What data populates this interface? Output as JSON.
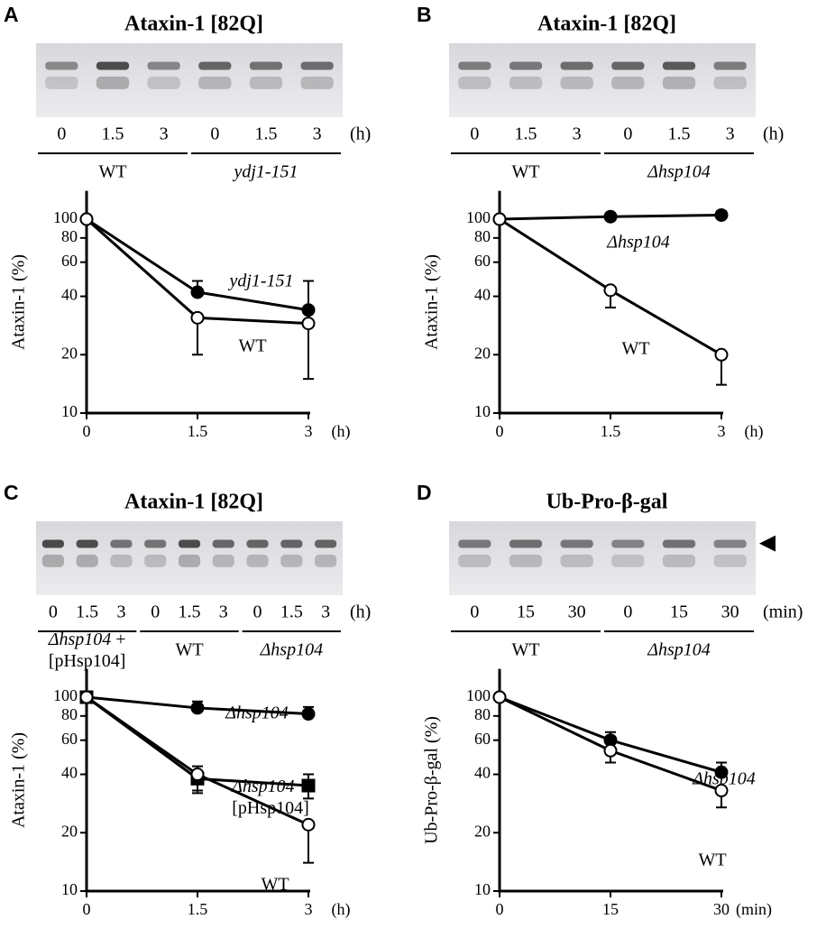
{
  "chart_data": [
    {
      "type": "line",
      "panel": "A",
      "title": "Ataxin-1 [82Q]",
      "lanes": [
        "0",
        "1.5",
        "3",
        "0",
        "1.5",
        "3"
      ],
      "unit": "(h)",
      "groups": [
        "WT",
        "ydj1-151"
      ],
      "ylabel": "Ataxin-1 (%)",
      "log_y": true,
      "x": [
        0,
        1.5,
        3
      ],
      "xlim": [
        0,
        3
      ],
      "xticks": [
        0,
        1.5,
        3
      ],
      "ylim": [
        10,
        140
      ],
      "yticks": [
        10,
        20,
        40,
        60,
        80,
        100
      ],
      "series": [
        {
          "name": "ydj1-151",
          "color": "#000000",
          "marker": "circle",
          "marker_fill": "#000000",
          "error_side": "up",
          "values": [
            100,
            42,
            34
          ],
          "errors": [
            0,
            6,
            14
          ]
        },
        {
          "name": "WT",
          "color": "#000000",
          "marker": "circle",
          "marker_fill": "#ffffff",
          "error_side": "down",
          "values": [
            100,
            31,
            29
          ],
          "errors": [
            0,
            11,
            14
          ]
        }
      ]
    },
    {
      "type": "line",
      "panel": "B",
      "title": "Ataxin-1 [82Q]",
      "lanes": [
        "0",
        "1.5",
        "3",
        "0",
        "1.5",
        "3"
      ],
      "unit": "(h)",
      "groups": [
        "WT",
        "Δhsp104"
      ],
      "ylabel": "Ataxin-1 (%)",
      "log_y": true,
      "x": [
        0,
        1.5,
        3
      ],
      "xlim": [
        0,
        3
      ],
      "xticks": [
        0,
        1.5,
        3
      ],
      "ylim": [
        10,
        140
      ],
      "yticks": [
        10,
        20,
        40,
        60,
        80,
        100
      ],
      "series": [
        {
          "name": "Δhsp104",
          "color": "#000000",
          "marker": "circle",
          "marker_fill": "#000000",
          "error_side": "up",
          "values": [
            100,
            103,
            105
          ],
          "errors": [
            0,
            4,
            5
          ]
        },
        {
          "name": "WT",
          "color": "#000000",
          "marker": "circle",
          "marker_fill": "#ffffff",
          "error_side": "down",
          "values": [
            100,
            43,
            20
          ],
          "errors": [
            0,
            8,
            6
          ]
        }
      ]
    },
    {
      "type": "line",
      "panel": "C",
      "title": "Ataxin-1 [82Q]",
      "lanes": [
        "0",
        "1.5",
        "3",
        "0",
        "1.5",
        "3",
        "0",
        "1.5",
        "3"
      ],
      "unit": "(h)",
      "groups": [
        "Δhsp104 + [pHsp104]",
        "WT",
        "Δhsp104"
      ],
      "ylabel": "Ataxin-1 (%)",
      "log_y": true,
      "x": [
        0,
        1.5,
        3
      ],
      "xlim": [
        0,
        3
      ],
      "xticks": [
        0,
        1.5,
        3
      ],
      "ylim": [
        10,
        140
      ],
      "yticks": [
        10,
        20,
        40,
        60,
        80,
        100
      ],
      "series": [
        {
          "name": "Δhsp104",
          "color": "#000000",
          "marker": "circle",
          "marker_fill": "#000000",
          "error_side": "up",
          "values": [
            100,
            88,
            82
          ],
          "errors": [
            0,
            7,
            7
          ]
        },
        {
          "name": "Δhsp104 + [pHsp104]",
          "color": "#000000",
          "marker": "square",
          "marker_fill": "#000000",
          "error_side": "both",
          "values": [
            100,
            38,
            35
          ],
          "errors": [
            0,
            6,
            5
          ]
        },
        {
          "name": "WT",
          "color": "#000000",
          "marker": "circle",
          "marker_fill": "#ffffff",
          "error_side": "down",
          "values": [
            100,
            40,
            22
          ],
          "errors": [
            0,
            7,
            8
          ]
        }
      ]
    },
    {
      "type": "line",
      "panel": "D",
      "title": "Ub-Pro-β-gal",
      "lanes": [
        "0",
        "15",
        "30",
        "0",
        "15",
        "30"
      ],
      "unit": "(min)",
      "groups": [
        "WT",
        "Δhsp104"
      ],
      "ylabel": "Ub-Pro-β-gal (%)",
      "log_y": true,
      "x": [
        0,
        15,
        30
      ],
      "xlim": [
        0,
        30
      ],
      "xticks": [
        0,
        15,
        30
      ],
      "ylim": [
        10,
        140
      ],
      "yticks": [
        10,
        20,
        40,
        60,
        80,
        100
      ],
      "series": [
        {
          "name": "Δhsp104",
          "color": "#000000",
          "marker": "circle",
          "marker_fill": "#000000",
          "error_side": "up",
          "values": [
            100,
            60,
            41
          ],
          "errors": [
            0,
            6,
            5
          ]
        },
        {
          "name": "WT",
          "color": "#000000",
          "marker": "circle",
          "marker_fill": "#ffffff",
          "error_side": "down",
          "values": [
            100,
            53,
            33
          ],
          "errors": [
            0,
            7,
            6
          ]
        }
      ]
    }
  ]
}
